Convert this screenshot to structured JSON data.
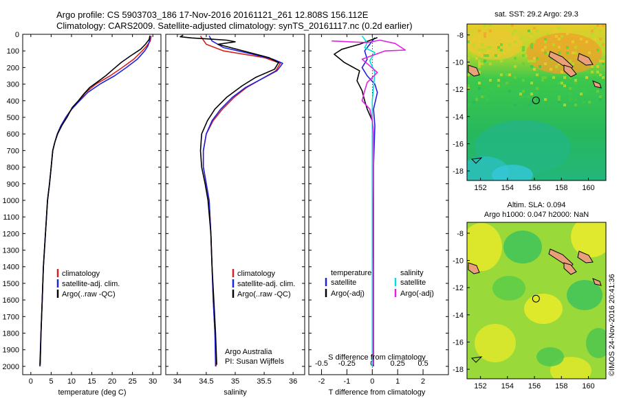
{
  "header": {
    "line1": "Argo profile: CS 5903703_186 17-Nov-2016 20161121_261 12.808S 156.112E",
    "line2": "Climatology: CARS2009. Satellite-adjusted climatology: synTS_20161117.nc (0.2d earlier)"
  },
  "colors": {
    "climatology": "#d62020",
    "satellite": "#1f1fe0",
    "argo": "#000000",
    "salinity_sat": "#00dede",
    "salinity_argo": "#e020e0"
  },
  "chart_data": [
    {
      "type": "line",
      "title": "",
      "xlabel": "temperature (deg C)",
      "ylabel": "",
      "xlim": [
        -2,
        32
      ],
      "ylim": [
        2050,
        0
      ],
      "xticks": [
        0,
        5,
        10,
        15,
        20,
        25,
        30
      ],
      "yticks": [
        0,
        100,
        200,
        300,
        400,
        500,
        600,
        700,
        800,
        900,
        1000,
        1100,
        1200,
        1300,
        1400,
        1500,
        1600,
        1700,
        1800,
        1900,
        2000
      ],
      "legend": [
        "climatology",
        "satellite-adj. clim.",
        "Argo(..raw -QC)"
      ],
      "series": [
        {
          "name": "climatology",
          "color_key": "climatology",
          "points": [
            [
              29.6,
              10
            ],
            [
              29.4,
              40
            ],
            [
              28.5,
              70
            ],
            [
              27.4,
              100
            ],
            [
              25.3,
              150
            ],
            [
              22.5,
              200
            ],
            [
              19.5,
              250
            ],
            [
              16,
              300
            ],
            [
              13.5,
              350
            ],
            [
              11.8,
              400
            ],
            [
              10,
              450
            ],
            [
              8.6,
              500
            ],
            [
              7.4,
              550
            ],
            [
              6.5,
              600
            ],
            [
              5.9,
              650
            ],
            [
              5.4,
              700
            ],
            [
              5,
              800
            ],
            [
              4.6,
              900
            ],
            [
              4.1,
              1000
            ],
            [
              3.6,
              1200
            ],
            [
              3.1,
              1400
            ],
            [
              2.8,
              1600
            ],
            [
              2.5,
              1800
            ],
            [
              2.3,
              2000
            ]
          ]
        },
        {
          "name": "satellite-adj. clim.",
          "color_key": "satellite",
          "points": [
            [
              29.3,
              10
            ],
            [
              29.2,
              40
            ],
            [
              28.8,
              70
            ],
            [
              28,
              100
            ],
            [
              26.2,
              150
            ],
            [
              23.5,
              200
            ],
            [
              20.6,
              250
            ],
            [
              17,
              300
            ],
            [
              14,
              350
            ],
            [
              12,
              400
            ],
            [
              10.1,
              450
            ],
            [
              8.6,
              500
            ],
            [
              7.4,
              550
            ],
            [
              6.5,
              600
            ],
            [
              5.9,
              650
            ],
            [
              5.4,
              700
            ],
            [
              5,
              800
            ],
            [
              4.6,
              900
            ],
            [
              4.1,
              1000
            ],
            [
              3.6,
              1200
            ],
            [
              3.1,
              1400
            ],
            [
              2.8,
              1600
            ],
            [
              2.5,
              1800
            ],
            [
              2.2,
              2000
            ]
          ]
        },
        {
          "name": "Argo(..raw -QC)",
          "color_key": "argo",
          "points": [
            [
              29.3,
              8
            ],
            [
              29.1,
              30
            ],
            [
              28.2,
              60
            ],
            [
              27,
              90
            ],
            [
              24.5,
              130
            ],
            [
              22.2,
              170
            ],
            [
              20.3,
              210
            ],
            [
              18.4,
              250
            ],
            [
              16.2,
              290
            ],
            [
              14.5,
              320
            ],
            [
              13,
              360
            ],
            [
              11.7,
              400
            ],
            [
              10.2,
              440
            ],
            [
              8.9,
              500
            ],
            [
              7.6,
              550
            ],
            [
              6.6,
              600
            ],
            [
              5.9,
              650
            ],
            [
              5.4,
              700
            ],
            [
              5,
              800
            ],
            [
              4.6,
              900
            ],
            [
              4.1,
              1000
            ],
            [
              3.6,
              1200
            ],
            [
              3.1,
              1400
            ],
            [
              2.8,
              1600
            ],
            [
              2.5,
              1800
            ],
            [
              2.3,
              1990
            ]
          ]
        }
      ]
    },
    {
      "type": "line",
      "title": "",
      "xlabel": "salinity",
      "ylabel": "",
      "xlim": [
        33.8,
        36.2
      ],
      "ylim": [
        2050,
        0
      ],
      "xticks": [
        34,
        34.5,
        35,
        35.5,
        36
      ],
      "legend": [
        "climatology",
        "satellite-adj. clim.",
        "Argo(..raw -QC)"
      ],
      "annotation_line1": "Argo Australia",
      "annotation_line2": "PI: Susan Wijffels",
      "series": [
        {
          "name": "climatology",
          "color_key": "climatology",
          "points": [
            [
              34.4,
              10
            ],
            [
              34.5,
              60
            ],
            [
              34.8,
              100
            ],
            [
              35.5,
              140
            ],
            [
              35.78,
              175
            ],
            [
              35.7,
              220
            ],
            [
              35.45,
              270
            ],
            [
              35.2,
              320
            ],
            [
              34.98,
              380
            ],
            [
              34.78,
              450
            ],
            [
              34.62,
              520
            ],
            [
              34.5,
              600
            ],
            [
              34.45,
              700
            ],
            [
              34.45,
              800
            ],
            [
              34.5,
              900
            ],
            [
              34.55,
              1000
            ],
            [
              34.58,
              1200
            ],
            [
              34.6,
              1400
            ],
            [
              34.62,
              1600
            ],
            [
              34.65,
              1800
            ],
            [
              34.67,
              2000
            ]
          ]
        },
        {
          "name": "satellite-adj. clim.",
          "color_key": "satellite",
          "points": [
            [
              34.55,
              10
            ],
            [
              34.6,
              40
            ],
            [
              34.8,
              80
            ],
            [
              35.3,
              120
            ],
            [
              35.65,
              150
            ],
            [
              35.82,
              175
            ],
            [
              35.72,
              220
            ],
            [
              35.45,
              270
            ],
            [
              35.18,
              320
            ],
            [
              34.95,
              380
            ],
            [
              34.75,
              450
            ],
            [
              34.6,
              520
            ],
            [
              34.5,
              600
            ],
            [
              34.45,
              700
            ],
            [
              34.45,
              800
            ],
            [
              34.5,
              900
            ],
            [
              34.55,
              1000
            ],
            [
              34.58,
              1200
            ],
            [
              34.6,
              1400
            ],
            [
              34.62,
              1600
            ],
            [
              34.65,
              1800
            ],
            [
              34.66,
              2000
            ]
          ]
        },
        {
          "name": "Argo(..raw -QC)",
          "color_key": "argo",
          "points": [
            [
              34.1,
              5
            ],
            [
              34.05,
              15
            ],
            [
              34.25,
              22
            ],
            [
              34.55,
              28
            ],
            [
              34.85,
              35
            ],
            [
              35.0,
              45
            ],
            [
              34.7,
              60
            ],
            [
              34.92,
              80
            ],
            [
              35.25,
              110
            ],
            [
              35.58,
              140
            ],
            [
              35.75,
              170
            ],
            [
              35.68,
              210
            ],
            [
              35.35,
              260
            ],
            [
              35.12,
              310
            ],
            [
              34.85,
              380
            ],
            [
              34.65,
              450
            ],
            [
              34.52,
              520
            ],
            [
              34.42,
              600
            ],
            [
              34.4,
              700
            ],
            [
              34.42,
              800
            ],
            [
              34.48,
              900
            ],
            [
              34.53,
              1000
            ],
            [
              34.58,
              1200
            ],
            [
              34.6,
              1400
            ],
            [
              34.63,
              1600
            ],
            [
              34.66,
              1800
            ],
            [
              34.68,
              1990
            ]
          ]
        }
      ]
    },
    {
      "type": "line",
      "title": "",
      "xlabel": "T difference from climatology",
      "xlabel_top": "S difference from climatology",
      "ylabel": "",
      "xlim": [
        -2.5,
        3
      ],
      "ylim": [
        2050,
        0
      ],
      "xticks": [
        -2,
        -1,
        0,
        1,
        2
      ],
      "xticks_top": [
        {
          "label": "-0.5",
          "at": -2
        },
        {
          "label": "-0.25",
          "at": -1
        },
        {
          "label": "0",
          "at": 0
        },
        {
          "label": "0.25",
          "at": 1
        },
        {
          "label": "0.5",
          "at": 2
        }
      ],
      "legend_title_left": "temperature",
      "legend_title_right": "salinity",
      "legend": [
        "satellite",
        "Argo(-adj)",
        "satellite",
        "Argo(-adj)"
      ],
      "series": [
        {
          "name": "temperature satellite",
          "color_key": "satellite",
          "points": [
            [
              0.1,
              20
            ],
            [
              -0.1,
              60
            ],
            [
              -0.3,
              100
            ],
            [
              -0.2,
              150
            ],
            [
              -0.4,
              200
            ],
            [
              -0.2,
              250
            ],
            [
              0.1,
              300
            ],
            [
              0.2,
              350
            ],
            [
              0.05,
              450
            ],
            [
              0.1,
              550
            ],
            [
              0.05,
              800
            ],
            [
              0.05,
              1200
            ],
            [
              0.05,
              1600
            ],
            [
              0.05,
              2000
            ]
          ]
        },
        {
          "name": "temperature Argo(-adj)",
          "color_key": "argo",
          "points": [
            [
              0.2,
              20
            ],
            [
              -0.5,
              60
            ],
            [
              -1.2,
              90
            ],
            [
              -1.5,
              120
            ],
            [
              -1.1,
              170
            ],
            [
              -0.5,
              220
            ],
            [
              -0.6,
              280
            ],
            [
              -0.4,
              340
            ],
            [
              -0.3,
              400
            ],
            [
              -0.2,
              450
            ],
            [
              0,
              520
            ],
            [
              0,
              600
            ],
            [
              0,
              900
            ],
            [
              0.05,
              1400
            ],
            [
              0.05,
              1990
            ]
          ]
        },
        {
          "name": "salinity satellite",
          "color_key": "salinity_sat",
          "points": [
            [
              -0.4,
              10
            ],
            [
              -0.2,
              50
            ],
            [
              -0.3,
              80
            ],
            [
              0.1,
              110
            ],
            [
              -0.1,
              160
            ],
            [
              0.1,
              230
            ],
            [
              0,
              400
            ],
            [
              0,
              800
            ],
            [
              0,
              1200
            ],
            [
              0,
              1600
            ],
            [
              0,
              2000
            ]
          ]
        },
        {
          "name": "salinity Argo(-adj)",
          "color_key": "salinity_argo",
          "points": [
            [
              -1.6,
              40
            ],
            [
              -0.2,
              50
            ],
            [
              0.3,
              35
            ],
            [
              0.9,
              55
            ],
            [
              1.3,
              95
            ],
            [
              0.5,
              100
            ],
            [
              -0.4,
              150
            ],
            [
              0.2,
              230
            ],
            [
              -0.2,
              290
            ],
            [
              -0.3,
              340
            ],
            [
              -0.4,
              400
            ],
            [
              -0.1,
              450
            ],
            [
              0,
              520
            ],
            [
              0.05,
              600
            ],
            [
              0.05,
              1000
            ],
            [
              0.05,
              1990
            ]
          ]
        }
      ]
    },
    {
      "type": "heatmap",
      "title": "sat. SST: 29.2 Argo: 29.3",
      "xlim": [
        151,
        161.3
      ],
      "ylim": [
        -18.7,
        -7.2
      ],
      "xticks": [
        152,
        154,
        156,
        158,
        160
      ],
      "yticks": [
        -8,
        -10,
        -12,
        -14,
        -16,
        -18
      ],
      "marker": {
        "lon": 156.112,
        "lat": -12.808
      }
    },
    {
      "type": "heatmap",
      "title": "Altim. SLA: 0.094",
      "subtitle": "Argo h1000: 0.047 h2000: NaN",
      "xlim": [
        151,
        161.3
      ],
      "ylim": [
        -18.7,
        -7.2
      ],
      "xticks": [
        152,
        154,
        156,
        158,
        160
      ],
      "yticks": [
        -8,
        -10,
        -12,
        -14,
        -16,
        -18
      ],
      "marker": {
        "lon": 156.112,
        "lat": -12.808
      }
    }
  ],
  "watermark": "©IMOS 24-Nov-2016 20:41:36"
}
